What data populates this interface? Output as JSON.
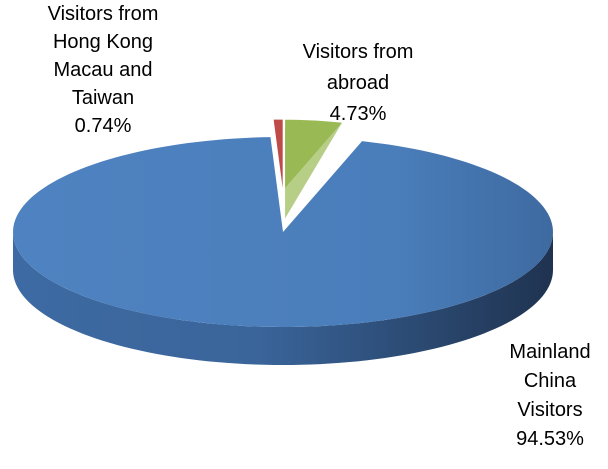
{
  "chart_data": {
    "type": "pie3d",
    "categories": [
      "Mainland\nChina\nVisitors",
      "Visitors from\nHong Kong\nMacau and\nTaiwan",
      "Visitors from\nabroad"
    ],
    "values": [
      94.53,
      0.74,
      4.73
    ],
    "value_labels": [
      "94.53%",
      "0.74%",
      "4.73%"
    ],
    "colors": [
      "#4a7ebb",
      "#be4b48",
      "#98b954"
    ]
  }
}
